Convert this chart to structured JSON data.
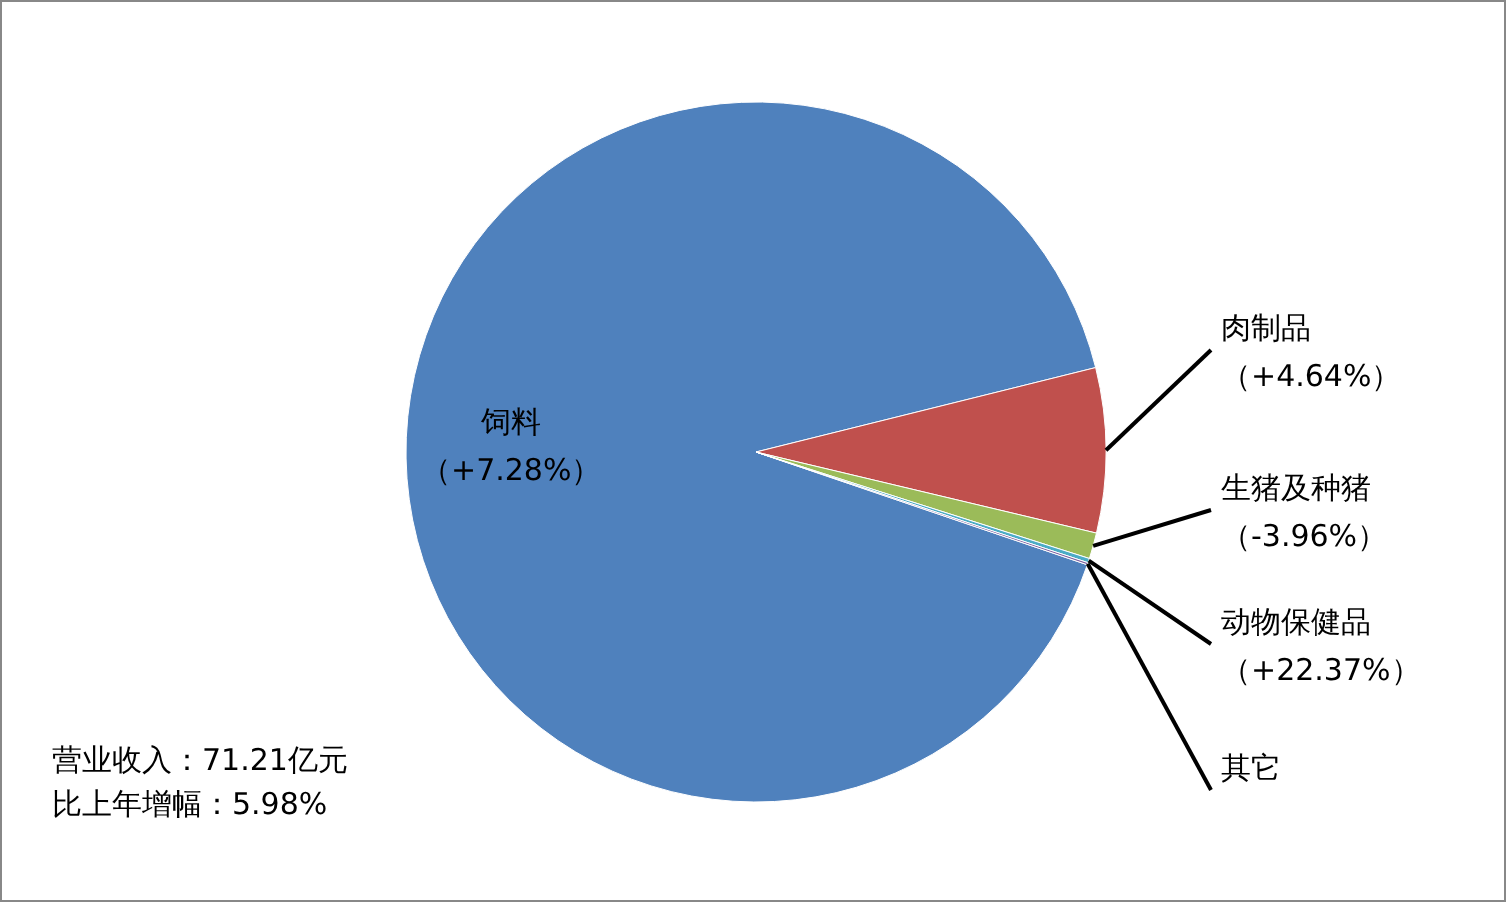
{
  "chart_data": {
    "type": "pie",
    "categories": [
      "饲料（+7.28%）",
      "肉制品（+4.64%）",
      "生猪及种猪（-3.96%）",
      "动物保健品（+22.37%）",
      "其它"
    ],
    "values": [
      90.9,
      7.6,
      1.2,
      0.2,
      0.1
    ],
    "colors": [
      "#4f81bd",
      "#c0504d",
      "#9bbb59",
      "#4bacc6",
      "#8064a2"
    ],
    "annotations": [
      "营业收入：71.21亿元",
      "比上年增幅：5.98%"
    ]
  }
}
